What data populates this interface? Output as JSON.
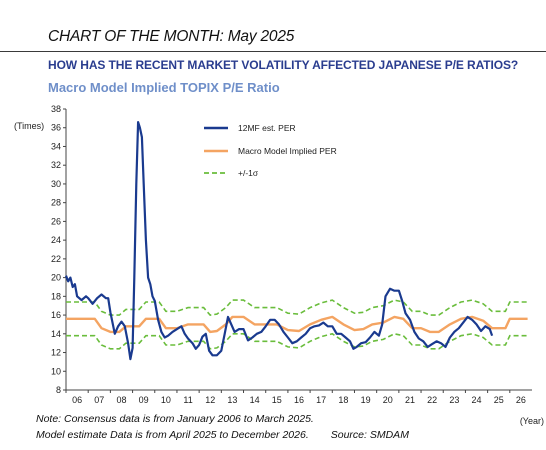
{
  "header": {
    "title": "CHART OF THE MONTH: May 2025",
    "question": "HOW HAS THE RECENT MARKET VOLATILITY AFFECTED JAPANESE P/E RATIOS?",
    "subtitle": "Macro Model Implied TOPIX P/E Ratio"
  },
  "notes": {
    "line1": "Note: Consensus data is from January 2006 to March 2025.",
    "line2": "Model estimate Data is from April 2025 to December 2026.",
    "source": "Source: SMDAM"
  },
  "chart_data": {
    "type": "line",
    "ylabel": "(Times)",
    "xlabel": "(Year)",
    "ylim": [
      8,
      38
    ],
    "yticks": [
      8,
      10,
      12,
      14,
      16,
      18,
      20,
      22,
      24,
      26,
      28,
      30,
      32,
      34,
      36,
      38
    ],
    "xlim": [
      2006.0,
      2027.0
    ],
    "xticks": [
      "06",
      "07",
      "08",
      "09",
      "10",
      "11",
      "12",
      "13",
      "14",
      "15",
      "16",
      "17",
      "18",
      "19",
      "20",
      "21",
      "22",
      "23",
      "24",
      "25",
      "26"
    ],
    "legend_position": "upper-center",
    "series": [
      {
        "name": "12MF est. PER",
        "color": "#1a3a8f",
        "style": "solid",
        "points": [
          [
            2006.0,
            20.2
          ],
          [
            2006.1,
            19.6
          ],
          [
            2006.2,
            20.0
          ],
          [
            2006.3,
            19.0
          ],
          [
            2006.4,
            19.3
          ],
          [
            2006.5,
            18.0
          ],
          [
            2006.7,
            17.6
          ],
          [
            2006.9,
            18.0
          ],
          [
            2007.0,
            17.8
          ],
          [
            2007.2,
            17.2
          ],
          [
            2007.4,
            17.8
          ],
          [
            2007.6,
            18.2
          ],
          [
            2007.8,
            17.8
          ],
          [
            2007.9,
            17.8
          ],
          [
            2008.0,
            16.3
          ],
          [
            2008.2,
            14.0
          ],
          [
            2008.35,
            14.8
          ],
          [
            2008.5,
            15.3
          ],
          [
            2008.65,
            14.8
          ],
          [
            2008.8,
            13.0
          ],
          [
            2008.9,
            11.3
          ],
          [
            2009.0,
            12.5
          ],
          [
            2009.08,
            20.0
          ],
          [
            2009.17,
            30.0
          ],
          [
            2009.25,
            36.6
          ],
          [
            2009.33,
            36.0
          ],
          [
            2009.42,
            35.0
          ],
          [
            2009.5,
            30.0
          ],
          [
            2009.6,
            24.0
          ],
          [
            2009.7,
            20.0
          ],
          [
            2009.8,
            19.3
          ],
          [
            2009.9,
            18.0
          ],
          [
            2010.0,
            17.5
          ],
          [
            2010.15,
            15.5
          ],
          [
            2010.3,
            14.2
          ],
          [
            2010.45,
            13.6
          ],
          [
            2010.6,
            13.8
          ],
          [
            2010.8,
            14.2
          ],
          [
            2011.0,
            14.5
          ],
          [
            2011.2,
            14.8
          ],
          [
            2011.35,
            14.0
          ],
          [
            2011.5,
            13.5
          ],
          [
            2011.7,
            13.0
          ],
          [
            2011.85,
            12.4
          ],
          [
            2012.0,
            12.8
          ],
          [
            2012.15,
            13.7
          ],
          [
            2012.3,
            14.0
          ],
          [
            2012.45,
            12.2
          ],
          [
            2012.6,
            11.7
          ],
          [
            2012.8,
            11.7
          ],
          [
            2013.0,
            12.2
          ],
          [
            2013.15,
            14.0
          ],
          [
            2013.3,
            15.8
          ],
          [
            2013.45,
            15.0
          ],
          [
            2013.6,
            14.2
          ],
          [
            2013.8,
            14.5
          ],
          [
            2014.0,
            14.5
          ],
          [
            2014.2,
            13.3
          ],
          [
            2014.4,
            13.6
          ],
          [
            2014.6,
            14.0
          ],
          [
            2014.8,
            14.2
          ],
          [
            2015.0,
            14.8
          ],
          [
            2015.2,
            15.5
          ],
          [
            2015.4,
            15.5
          ],
          [
            2015.6,
            15.0
          ],
          [
            2015.8,
            14.2
          ],
          [
            2016.0,
            13.6
          ],
          [
            2016.2,
            13.0
          ],
          [
            2016.4,
            13.2
          ],
          [
            2016.6,
            13.6
          ],
          [
            2016.8,
            14.0
          ],
          [
            2017.0,
            14.6
          ],
          [
            2017.2,
            14.8
          ],
          [
            2017.4,
            14.9
          ],
          [
            2017.6,
            15.2
          ],
          [
            2017.8,
            14.8
          ],
          [
            2018.0,
            14.8
          ],
          [
            2018.2,
            14.0
          ],
          [
            2018.4,
            14.0
          ],
          [
            2018.6,
            13.6
          ],
          [
            2018.8,
            13.2
          ],
          [
            2018.95,
            12.4
          ],
          [
            2019.1,
            12.6
          ],
          [
            2019.3,
            13.0
          ],
          [
            2019.5,
            13.1
          ],
          [
            2019.7,
            13.6
          ],
          [
            2019.9,
            14.2
          ],
          [
            2020.1,
            13.8
          ],
          [
            2020.25,
            15.0
          ],
          [
            2020.4,
            18.0
          ],
          [
            2020.6,
            18.8
          ],
          [
            2020.8,
            18.6
          ],
          [
            2021.0,
            18.6
          ],
          [
            2021.15,
            17.5
          ],
          [
            2021.3,
            16.2
          ],
          [
            2021.5,
            15.5
          ],
          [
            2021.7,
            14.2
          ],
          [
            2021.9,
            13.5
          ],
          [
            2022.1,
            13.2
          ],
          [
            2022.3,
            12.6
          ],
          [
            2022.5,
            12.9
          ],
          [
            2022.7,
            13.2
          ],
          [
            2022.9,
            13.0
          ],
          [
            2023.1,
            12.6
          ],
          [
            2023.3,
            13.6
          ],
          [
            2023.5,
            14.2
          ],
          [
            2023.7,
            14.6
          ],
          [
            2023.9,
            15.2
          ],
          [
            2024.1,
            15.8
          ],
          [
            2024.3,
            15.5
          ],
          [
            2024.5,
            15.0
          ],
          [
            2024.7,
            14.3
          ],
          [
            2024.9,
            14.8
          ],
          [
            2025.1,
            14.5
          ],
          [
            2025.2,
            13.8
          ]
        ]
      },
      {
        "name": "Macro Model Implied PER",
        "color": "#f4a462",
        "style": "solid",
        "points": [
          [
            2006.0,
            15.6
          ],
          [
            2007.3,
            15.6
          ],
          [
            2007.6,
            14.6
          ],
          [
            2008.0,
            14.2
          ],
          [
            2008.4,
            14.2
          ],
          [
            2008.7,
            14.8
          ],
          [
            2009.0,
            14.8
          ],
          [
            2009.3,
            14.8
          ],
          [
            2009.6,
            15.6
          ],
          [
            2010.2,
            15.6
          ],
          [
            2010.5,
            14.6
          ],
          [
            2011.0,
            14.6
          ],
          [
            2011.5,
            15.0
          ],
          [
            2012.2,
            15.0
          ],
          [
            2012.5,
            14.2
          ],
          [
            2012.8,
            14.3
          ],
          [
            2013.2,
            15.0
          ],
          [
            2013.5,
            15.8
          ],
          [
            2014.0,
            15.8
          ],
          [
            2014.5,
            15.0
          ],
          [
            2015.5,
            15.0
          ],
          [
            2016.0,
            14.4
          ],
          [
            2016.5,
            14.3
          ],
          [
            2017.0,
            15.0
          ],
          [
            2017.5,
            15.5
          ],
          [
            2018.0,
            15.8
          ],
          [
            2018.5,
            15.0
          ],
          [
            2019.0,
            14.4
          ],
          [
            2019.4,
            14.5
          ],
          [
            2019.8,
            15.0
          ],
          [
            2020.3,
            15.2
          ],
          [
            2020.8,
            15.8
          ],
          [
            2021.2,
            15.6
          ],
          [
            2021.6,
            14.6
          ],
          [
            2022.0,
            14.6
          ],
          [
            2022.4,
            14.2
          ],
          [
            2022.8,
            14.2
          ],
          [
            2023.3,
            15.0
          ],
          [
            2023.8,
            15.6
          ],
          [
            2024.3,
            15.8
          ],
          [
            2024.8,
            15.4
          ],
          [
            2025.2,
            14.6
          ],
          [
            2025.8,
            14.6
          ],
          [
            2026.0,
            15.6
          ],
          [
            2026.8,
            15.6
          ]
        ]
      },
      {
        "name": "+/-1σ",
        "color": "#6abd3c",
        "style": "dashed",
        "points_upper": [
          [
            2006.0,
            17.4
          ],
          [
            2007.3,
            17.4
          ],
          [
            2007.6,
            16.4
          ],
          [
            2008.0,
            16.0
          ],
          [
            2008.4,
            16.0
          ],
          [
            2008.7,
            16.6
          ],
          [
            2009.0,
            16.6
          ],
          [
            2009.3,
            16.6
          ],
          [
            2009.6,
            17.4
          ],
          [
            2010.2,
            17.4
          ],
          [
            2010.5,
            16.4
          ],
          [
            2011.0,
            16.4
          ],
          [
            2011.5,
            16.8
          ],
          [
            2012.2,
            16.8
          ],
          [
            2012.5,
            16.0
          ],
          [
            2012.8,
            16.1
          ],
          [
            2013.2,
            16.8
          ],
          [
            2013.5,
            17.6
          ],
          [
            2014.0,
            17.6
          ],
          [
            2014.5,
            16.8
          ],
          [
            2015.5,
            16.8
          ],
          [
            2016.0,
            16.2
          ],
          [
            2016.5,
            16.1
          ],
          [
            2017.0,
            16.8
          ],
          [
            2017.5,
            17.3
          ],
          [
            2018.0,
            17.6
          ],
          [
            2018.5,
            16.8
          ],
          [
            2019.0,
            16.2
          ],
          [
            2019.4,
            16.3
          ],
          [
            2019.8,
            16.8
          ],
          [
            2020.3,
            17.0
          ],
          [
            2020.8,
            17.6
          ],
          [
            2021.2,
            17.4
          ],
          [
            2021.6,
            16.4
          ],
          [
            2022.0,
            16.4
          ],
          [
            2022.4,
            16.0
          ],
          [
            2022.8,
            16.0
          ],
          [
            2023.3,
            16.8
          ],
          [
            2023.8,
            17.4
          ],
          [
            2024.3,
            17.6
          ],
          [
            2024.8,
            17.2
          ],
          [
            2025.2,
            16.4
          ],
          [
            2025.8,
            16.4
          ],
          [
            2026.0,
            17.4
          ],
          [
            2026.8,
            17.4
          ]
        ],
        "points_lower": [
          [
            2006.0,
            13.8
          ],
          [
            2007.3,
            13.8
          ],
          [
            2007.6,
            12.8
          ],
          [
            2008.0,
            12.4
          ],
          [
            2008.4,
            12.4
          ],
          [
            2008.7,
            13.0
          ],
          [
            2009.0,
            13.0
          ],
          [
            2009.3,
            13.0
          ],
          [
            2009.6,
            13.8
          ],
          [
            2010.2,
            13.8
          ],
          [
            2010.5,
            12.8
          ],
          [
            2011.0,
            12.8
          ],
          [
            2011.5,
            13.2
          ],
          [
            2012.2,
            13.2
          ],
          [
            2012.5,
            12.4
          ],
          [
            2012.8,
            12.5
          ],
          [
            2013.2,
            13.2
          ],
          [
            2013.5,
            14.0
          ],
          [
            2014.0,
            14.0
          ],
          [
            2014.5,
            13.2
          ],
          [
            2015.5,
            13.2
          ],
          [
            2016.0,
            12.6
          ],
          [
            2016.5,
            12.5
          ],
          [
            2017.0,
            13.2
          ],
          [
            2017.5,
            13.7
          ],
          [
            2018.0,
            14.0
          ],
          [
            2018.5,
            13.2
          ],
          [
            2019.0,
            12.6
          ],
          [
            2019.4,
            12.7
          ],
          [
            2019.8,
            13.2
          ],
          [
            2020.3,
            13.4
          ],
          [
            2020.8,
            14.0
          ],
          [
            2021.2,
            13.8
          ],
          [
            2021.6,
            12.8
          ],
          [
            2022.0,
            12.8
          ],
          [
            2022.4,
            12.4
          ],
          [
            2022.8,
            12.4
          ],
          [
            2023.3,
            13.2
          ],
          [
            2023.8,
            13.8
          ],
          [
            2024.3,
            14.0
          ],
          [
            2024.8,
            13.6
          ],
          [
            2025.2,
            12.8
          ],
          [
            2025.8,
            12.8
          ],
          [
            2026.0,
            13.8
          ],
          [
            2026.8,
            13.8
          ]
        ]
      }
    ]
  }
}
